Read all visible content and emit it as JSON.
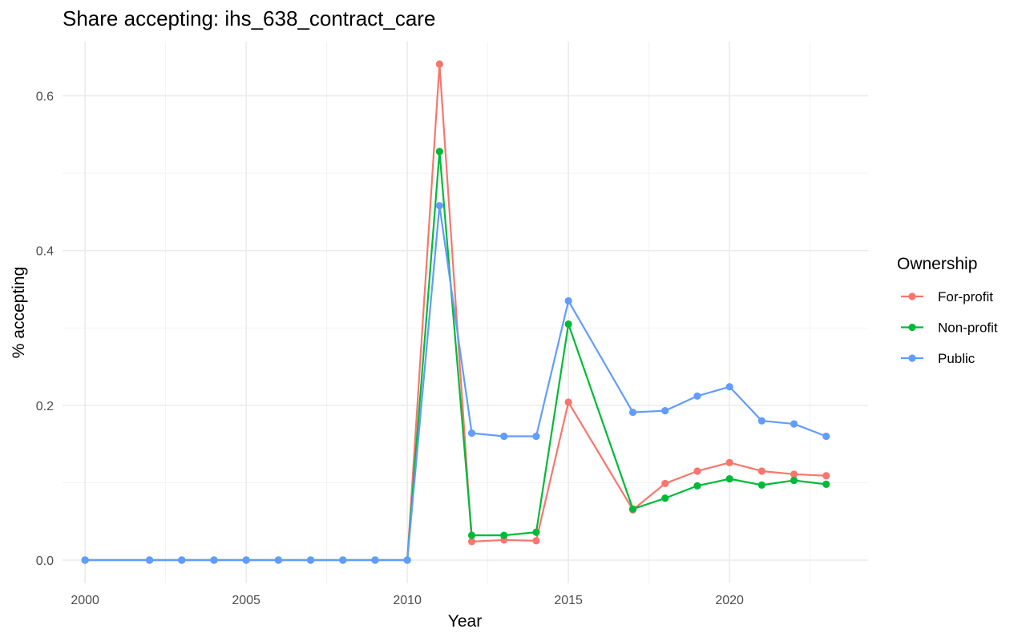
{
  "chart_data": {
    "type": "line",
    "title": "Share accepting: ihs_638_contract_care",
    "xlabel": "Year",
    "ylabel": "% accepting",
    "xlim": [
      1999.3,
      2024.3
    ],
    "ylim": [
      -0.03,
      0.67
    ],
    "x_ticks": [
      2000,
      2005,
      2010,
      2015,
      2020
    ],
    "x_tick_labels": [
      "2000",
      "2005",
      "2010",
      "2015",
      "2020"
    ],
    "y_ticks": [
      0.0,
      0.2,
      0.4,
      0.6
    ],
    "y_tick_labels": [
      "0.0",
      "0.2",
      "0.4",
      "0.6"
    ],
    "grid": true,
    "legend": {
      "title": "Ownership",
      "position": "right"
    },
    "x": [
      2000,
      2002,
      2003,
      2004,
      2005,
      2006,
      2007,
      2008,
      2009,
      2010,
      2011,
      2012,
      2013,
      2014,
      2015,
      2017,
      2018,
      2019,
      2020,
      2021,
      2022,
      2023
    ],
    "series": [
      {
        "name": "For-profit",
        "color": "#F8766D",
        "values": [
          0,
          0,
          0,
          0,
          0,
          0,
          0,
          0,
          0,
          0,
          0.641,
          0.024,
          0.026,
          0.025,
          0.204,
          0.065,
          0.099,
          0.115,
          0.126,
          0.115,
          0.111,
          0.109
        ]
      },
      {
        "name": "Non-profit",
        "color": "#00BA38",
        "values": [
          0,
          0,
          0,
          0,
          0,
          0,
          0,
          0,
          0,
          0,
          0.528,
          0.032,
          0.032,
          0.036,
          0.305,
          0.066,
          0.08,
          0.096,
          0.105,
          0.097,
          0.103,
          0.098
        ]
      },
      {
        "name": "Public",
        "color": "#619CFF",
        "values": [
          0,
          0,
          0,
          0,
          0,
          0,
          0,
          0,
          0,
          0,
          0.458,
          0.164,
          0.16,
          0.16,
          0.335,
          0.191,
          0.193,
          0.212,
          0.224,
          0.18,
          0.176,
          0.16
        ]
      }
    ]
  }
}
